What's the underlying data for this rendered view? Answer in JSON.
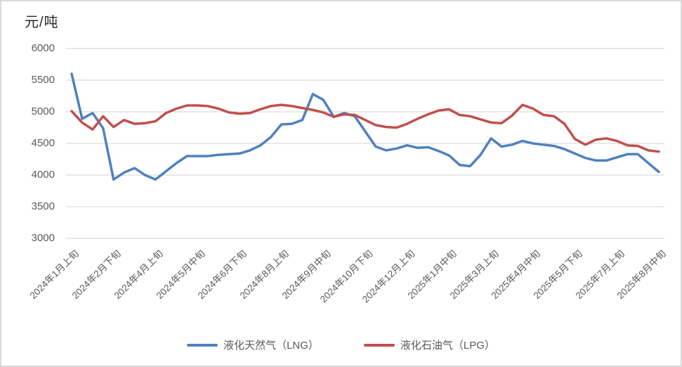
{
  "chart_title": "元/吨",
  "colors": {
    "lng_line": "#4F81BD",
    "lpg_line": "#C0504D",
    "gridline": "#D9D9D9",
    "axis_text": "#595959",
    "title_text": "#262626",
    "frame_border": "#D9D9D9"
  },
  "chart_data": {
    "type": "line",
    "title": "元/吨",
    "ylabel": "元/吨",
    "xlabel": "",
    "ylim": [
      3000,
      6000
    ],
    "yticks": [
      3000,
      3500,
      4000,
      4500,
      5000,
      5500,
      6000
    ],
    "grid": true,
    "legend_position": "bottom",
    "x_tick_interval": 4,
    "x_tick_labels": [
      "2024年1月上旬",
      "2024年2月下旬",
      "2024年4月上旬",
      "2024年5月中旬",
      "2024年6月下旬",
      "2024年8月上旬",
      "2024年9月中旬",
      "2024年10月下旬",
      "2024年12月上旬",
      "2025年1月中旬",
      "2025年3月上旬",
      "2025年4月中旬",
      "2025年5月下旬",
      "2025年7月上旬",
      "2025年8月中旬"
    ],
    "series": [
      {
        "name": "液化天然气（LNG）",
        "color": "#4F81BD",
        "values": [
          5600,
          4890,
          4980,
          4740,
          3930,
          4040,
          4110,
          4000,
          3930,
          4060,
          4190,
          4300,
          4300,
          4300,
          4320,
          4330,
          4340,
          4390,
          4470,
          4600,
          4800,
          4810,
          4870,
          5280,
          5190,
          4920,
          4980,
          4930,
          4690,
          4450,
          4390,
          4420,
          4470,
          4430,
          4440,
          4380,
          4310,
          4160,
          4140,
          4320,
          4580,
          4450,
          4480,
          4540,
          4500,
          4480,
          4460,
          4410,
          4340,
          4270,
          4230,
          4230,
          4280,
          4330,
          4330,
          4190,
          4050
        ]
      },
      {
        "name": "液化石油气（LPG）",
        "color": "#C0504D",
        "values": [
          5010,
          4830,
          4720,
          4930,
          4760,
          4870,
          4810,
          4820,
          4850,
          4980,
          5050,
          5100,
          5100,
          5090,
          5050,
          4990,
          4970,
          4980,
          5040,
          5090,
          5110,
          5090,
          5060,
          5030,
          4990,
          4920,
          4960,
          4950,
          4870,
          4790,
          4760,
          4750,
          4810,
          4890,
          4960,
          5020,
          5040,
          4950,
          4930,
          4880,
          4830,
          4820,
          4940,
          5110,
          5050,
          4950,
          4930,
          4810,
          4570,
          4480,
          4560,
          4580,
          4540,
          4470,
          4460,
          4390,
          4370
        ]
      }
    ]
  }
}
